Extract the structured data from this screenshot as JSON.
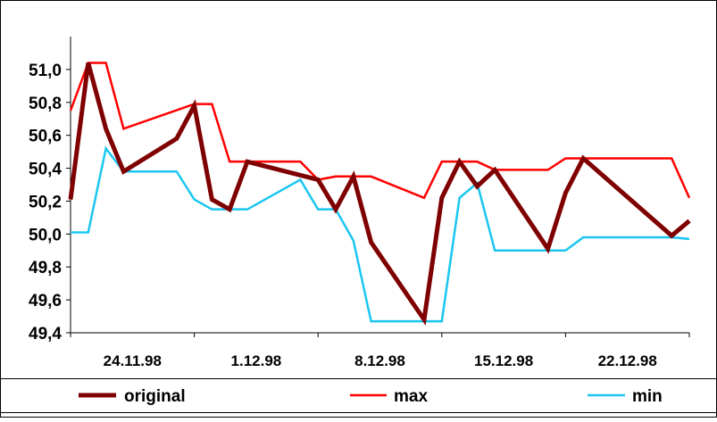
{
  "chart_data": {
    "type": "line",
    "title": "",
    "xlabel": "",
    "ylabel": "",
    "x": [
      "24.11.98",
      "25.11.98",
      "26.11.98",
      "27.11.98",
      "28.11.98",
      "29.11.98",
      "30.11.98",
      "1.12.98",
      "2.12.98",
      "3.12.98",
      "4.12.98",
      "5.12.98",
      "6.12.98",
      "7.12.98",
      "8.12.98",
      "9.12.98",
      "10.12.98",
      "11.12.98",
      "12.12.98",
      "13.12.98",
      "14.12.98",
      "15.12.98",
      "16.12.98",
      "17.12.98",
      "18.12.98",
      "19.12.98",
      "20.12.98",
      "21.12.98",
      "22.12.98",
      "23.12.98",
      "24.12.98",
      "25.12.98",
      "26.12.98",
      "27.12.98",
      "28.12.98",
      "29.12.98"
    ],
    "ylim": [
      49.4,
      51.2
    ],
    "yticks": [
      "49,4",
      "49,6",
      "49,8",
      "50,0",
      "50,2",
      "50,4",
      "50,6",
      "50,8",
      "51,0"
    ],
    "xticks": [
      "24.11.98",
      "1.12.98",
      "8.12.98",
      "15.12.98",
      "22.12.98"
    ],
    "grid": false,
    "legend": "bottom",
    "series": [
      {
        "name": "original",
        "color": "#7f0000",
        "values": [
          50.21,
          51.04,
          50.64,
          50.38,
          null,
          null,
          50.58,
          50.78,
          50.21,
          50.15,
          50.44,
          null,
          null,
          null,
          50.33,
          50.15,
          50.35,
          49.95,
          null,
          null,
          49.48,
          50.22,
          50.44,
          50.29,
          50.39,
          null,
          null,
          49.91,
          50.25,
          50.46,
          null,
          null,
          null,
          null,
          49.99,
          50.08
        ]
      },
      {
        "name": "max",
        "color": "#ff0000",
        "values": [
          50.75,
          51.04,
          51.04,
          50.64,
          null,
          null,
          null,
          50.79,
          50.79,
          50.44,
          50.44,
          null,
          null,
          50.44,
          50.33,
          50.35,
          50.35,
          50.35,
          null,
          null,
          50.22,
          50.44,
          50.44,
          50.44,
          50.39,
          null,
          null,
          50.39,
          50.46,
          50.46,
          null,
          null,
          null,
          null,
          50.46,
          50.22
        ]
      },
      {
        "name": "min",
        "color": "#1ac6f0",
        "values": [
          50.01,
          50.01,
          50.52,
          50.38,
          50.38,
          null,
          50.38,
          50.21,
          50.15,
          50.15,
          50.15,
          null,
          null,
          50.33,
          50.15,
          50.15,
          49.96,
          49.47,
          49.47,
          null,
          49.47,
          49.47,
          50.22,
          50.31,
          49.9,
          49.9,
          null,
          49.9,
          49.9,
          49.98,
          null,
          null,
          null,
          null,
          49.98,
          49.97
        ]
      }
    ]
  }
}
